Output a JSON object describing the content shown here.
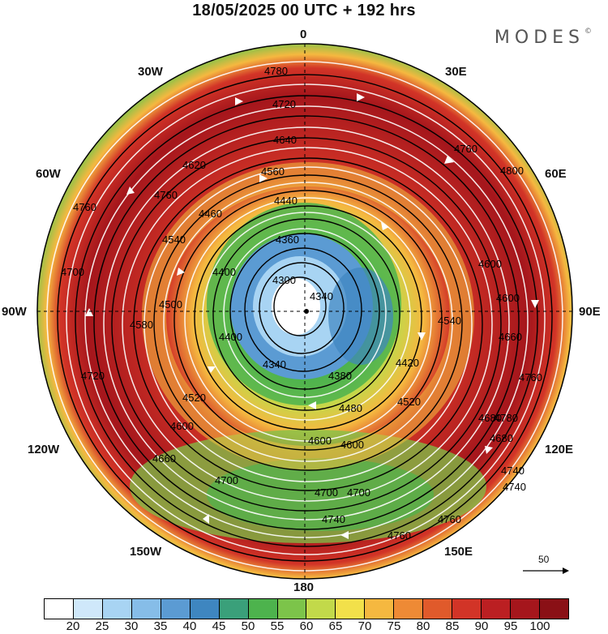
{
  "title": "18/05/2025  00 UTC  + 192 hrs",
  "brand": "MODES",
  "brand_mark": "©",
  "longitude_labels": {
    "n": "0",
    "ne": "30E",
    "ene": "60E",
    "e": "90E",
    "ese": "120E",
    "se": "150E",
    "s": "180",
    "sw": "150W",
    "wsw": "120W",
    "w": "90W",
    "wnw": "60W",
    "nw": "30W"
  },
  "vector_reference": "50",
  "contour_labels": [
    "4780",
    "4760",
    "4720",
    "4640",
    "4620",
    "4560",
    "4440",
    "4460",
    "4360",
    "4300",
    "4340",
    "4380",
    "4400",
    "4500",
    "4540",
    "4580",
    "4600",
    "4660",
    "4680",
    "4700",
    "4740",
    "4480",
    "4420",
    "4520",
    "4800"
  ],
  "colorbar": {
    "ticks": [
      "20",
      "25",
      "30",
      "35",
      "40",
      "45",
      "50",
      "55",
      "60",
      "65",
      "70",
      "75",
      "80",
      "85",
      "90",
      "95",
      "100"
    ],
    "colors": [
      "#ffffff",
      "#cfe8fa",
      "#a8d4f3",
      "#86bde8",
      "#5b9bd3",
      "#3e86c0",
      "#3aa07a",
      "#4db34d",
      "#7cc44a",
      "#c2d94a",
      "#f2e04a",
      "#f5b840",
      "#ee8a35",
      "#e05a2b",
      "#d23427",
      "#bb1f22",
      "#a5161c",
      "#8a1016"
    ]
  },
  "map_regions": [
    {
      "name": "outer-ring-shadow",
      "value": "70-100"
    },
    {
      "name": "jet-core",
      "value": "85-100"
    },
    {
      "name": "polar-vortex-center",
      "value": "20-45"
    }
  ]
}
